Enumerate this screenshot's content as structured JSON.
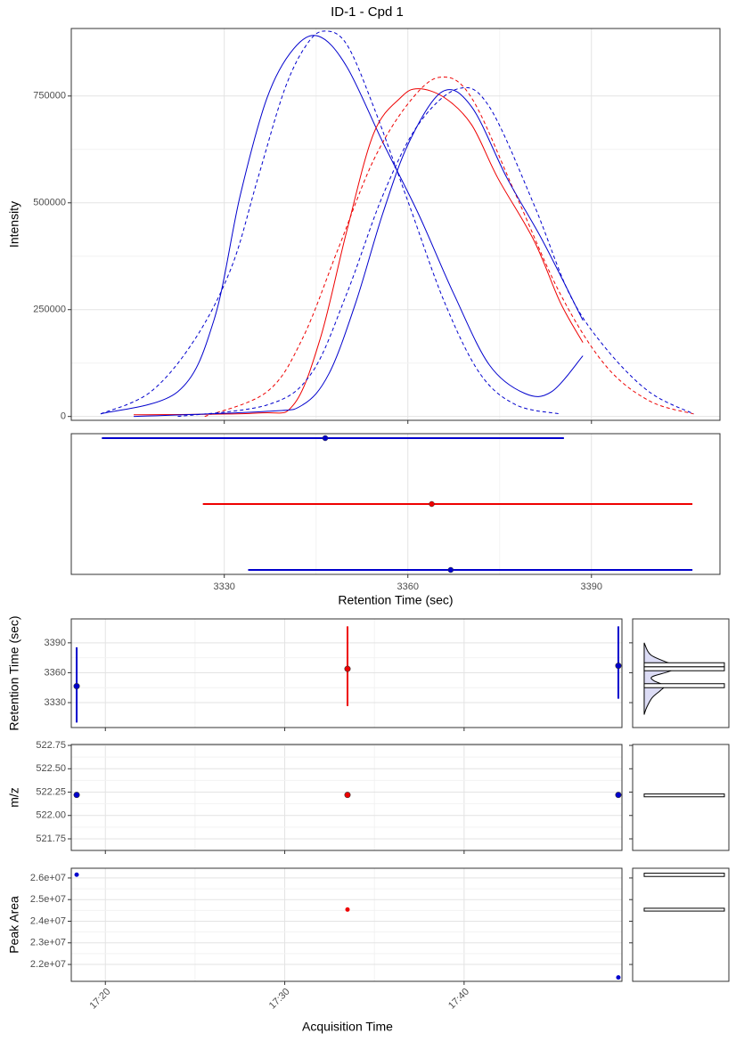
{
  "chart_data": [
    {
      "type": "line",
      "title": "ID-1 - Cpd 1",
      "ylabel": "Intensity",
      "xlim": [
        3305,
        3411
      ],
      "ylim": [
        -9000,
        908000
      ],
      "xticks": [
        3330,
        3360,
        3390
      ],
      "yticks": [
        0,
        250000,
        500000,
        750000
      ],
      "grid": true,
      "series": [
        {
          "color": "#0000cd",
          "dash": false,
          "x": [
            3309.8,
            3322.4,
            3328.3,
            3332.6,
            3337,
            3341.3,
            3345.4,
            3350,
            3355.9,
            3361.7,
            3367.5,
            3373.3,
            3379.1,
            3383.5,
            3388.6
          ],
          "values": [
            6000,
            58000,
            225000,
            517000,
            746000,
            860000,
            890000,
            819000,
            642000,
            475000,
            287000,
            121000,
            54000,
            58000,
            142000
          ]
        },
        {
          "color": "#0000cd",
          "dash": true,
          "x": [
            3309.8,
            3318,
            3325.3,
            3331.2,
            3335.5,
            3339.9,
            3343.5,
            3346.4,
            3350,
            3354.4,
            3360.2,
            3366,
            3371.8,
            3377.7,
            3384.9
          ],
          "values": [
            6000,
            58000,
            183000,
            350000,
            558000,
            767000,
            871000,
            902000,
            871000,
            725000,
            496000,
            267000,
            100000,
            27000,
            6000
          ]
        },
        {
          "color": "#ee0000",
          "dash": false,
          "x": [
            3315.2,
            3335.5,
            3341.3,
            3345.7,
            3350,
            3354.4,
            3358.8,
            3361.7,
            3366,
            3370.4,
            3374.7,
            3380.6,
            3384.9,
            3388.6
          ],
          "values": [
            4000,
            8000,
            27000,
            183000,
            433000,
            662000,
            746000,
            767000,
            746000,
            683000,
            558000,
            412000,
            267000,
            173000
          ]
        },
        {
          "color": "#ee0000",
          "dash": true,
          "x": [
            3326.8,
            3337,
            3342.8,
            3348.6,
            3354.4,
            3360.2,
            3365.3,
            3370.4,
            3377.7,
            3384.9,
            3392.2,
            3399.4,
            3406.7
          ],
          "values": [
            0,
            58000,
            183000,
            392000,
            600000,
            735000,
            794000,
            746000,
            517000,
            287000,
            121000,
            37000,
            6000
          ]
        },
        {
          "color": "#0000cd",
          "dash": false,
          "x": [
            3315.2,
            3337,
            3342.8,
            3347.1,
            3351.5,
            3355.9,
            3360.2,
            3365.6,
            3370.4,
            3376.2,
            3382,
            3388.6
          ],
          "values": [
            0,
            12000,
            27000,
            100000,
            267000,
            475000,
            642000,
            760000,
            725000,
            558000,
            412000,
            225000
          ]
        },
        {
          "color": "#0000cd",
          "dash": true,
          "x": [
            3322.4,
            3337,
            3344.2,
            3350,
            3355.9,
            3361.7,
            3368.2,
            3373.3,
            3380.6,
            3386.4,
            3392.2,
            3399.4,
            3406.7
          ],
          "values": [
            0,
            27000,
            100000,
            287000,
            517000,
            683000,
            767000,
            725000,
            496000,
            287000,
            162000,
            58000,
            6000
          ]
        }
      ]
    },
    {
      "type": "range",
      "xlabel": "Retention Time (sec)",
      "xlim": [
        3305,
        3411
      ],
      "xticks": [
        3330,
        3360,
        3390
      ],
      "grid": true,
      "rows": [
        {
          "color": "#0000cd",
          "low": 3310,
          "value": 3346.5,
          "high": 3385.5
        },
        {
          "color": "#ee0000",
          "low": 3326.5,
          "value": 3363.9,
          "high": 3406.5
        },
        {
          "color": "#0000cd",
          "low": 3333.9,
          "value": 3367,
          "high": 3406.5
        }
      ]
    },
    {
      "type": "errorbar",
      "ylabel": "Retention Time (sec)",
      "xlim": [
        1038.1,
        1068.8
      ],
      "xticks": [
        1040,
        1050,
        1060
      ],
      "ylim": [
        3305,
        3414
      ],
      "yticks": [
        3330,
        3360,
        3390
      ],
      "grid": true,
      "x": [
        1038.4,
        1053.5,
        1068.6
      ],
      "values": [
        3346.5,
        3363.9,
        3367
      ],
      "low": [
        3310,
        3326.5,
        3333.9
      ],
      "high": [
        3385.5,
        3406.5,
        3406.5
      ],
      "colors": [
        "#0000cd",
        "#ee0000",
        "#0000cd"
      ],
      "margin": {
        "xlim": [
          -0.144,
          1.056
        ],
        "bins": [
          3345,
          3349,
          3362,
          3366,
          3370
        ],
        "counts": [
          1,
          0,
          1,
          1
        ],
        "density": {
          "y": [
            3318,
            3325,
            3335,
            3342,
            3347,
            3352,
            3356,
            3361,
            3366,
            3370,
            3378,
            3390
          ],
          "values": [
            0,
            0.03,
            0.1,
            0.2,
            0.25,
            0.12,
            0.1,
            0.3,
            0.44,
            0.3,
            0.08,
            0
          ]
        }
      }
    },
    {
      "type": "scatter",
      "ylabel": "m/z",
      "xlim": [
        1038.1,
        1068.8
      ],
      "xticks": [
        1040,
        1050,
        1060
      ],
      "ylim": [
        521.626,
        522.76
      ],
      "yticks": [
        521.75,
        {
          "value": 522,
          "label": "522.00"
        },
        522.25,
        {
          "value": 522.5,
          "label": "522.50"
        },
        522.75
      ],
      "grid": true,
      "x": [
        1038.4,
        1053.5,
        1068.6
      ],
      "values": [
        522.22,
        522.22,
        522.22
      ],
      "colors": [
        "#0000cd",
        "#ee0000",
        "#0000cd"
      ],
      "margin": {
        "xlim": [
          -0.144,
          1.056
        ],
        "bins": [
          522.2,
          522.23
        ],
        "counts": [
          1
        ]
      }
    },
    {
      "type": "scatter",
      "ylabel": "Peak Area",
      "xlabel": "Acquisition Time",
      "xlim": [
        1038.1,
        1068.8
      ],
      "xticks": [
        {
          "value": 1040,
          "label": "17:20"
        },
        {
          "value": 1050,
          "label": "17:30"
        },
        {
          "value": 1060,
          "label": "17:40"
        }
      ],
      "ylim": [
        21220000,
        26450000
      ],
      "yticks": [
        {
          "value": 22000000,
          "label": "2.2e+07"
        },
        {
          "value": 23000000,
          "label": "2.3e+07"
        },
        {
          "value": 24000000,
          "label": "2.4e+07"
        },
        {
          "value": 25000000,
          "label": "2.5e+07"
        },
        {
          "value": 26000000,
          "label": "2.6e+07"
        }
      ],
      "grid": true,
      "x": [
        1038.4,
        1053.5,
        1068.6
      ],
      "values": [
        26150000,
        24540000,
        21400000
      ],
      "colors": [
        "#0000cd",
        "#ee0000",
        "#0000cd"
      ],
      "margin": {
        "xlim": [
          -0.144,
          1.056
        ],
        "bins": [
          24470000,
          24600000,
          26070000,
          26220000
        ],
        "counts": [
          1,
          0,
          1
        ]
      }
    }
  ]
}
